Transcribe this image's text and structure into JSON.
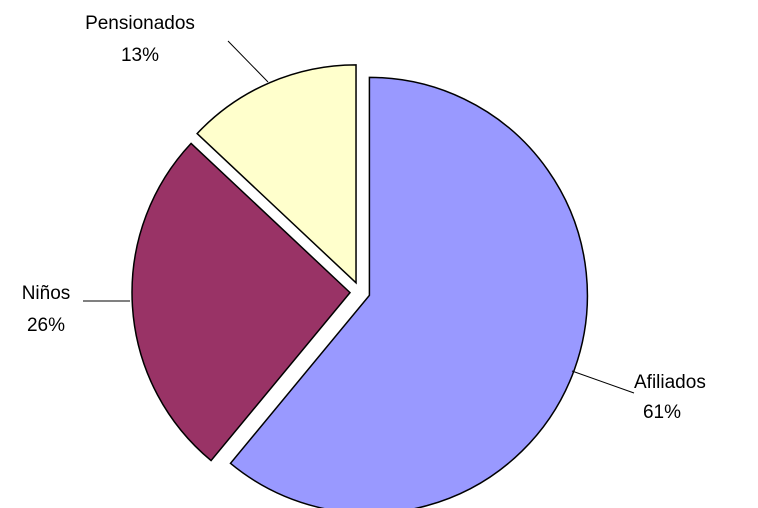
{
  "chart_data": {
    "type": "pie",
    "title": "",
    "slices": [
      {
        "label": "Afiliados",
        "value": 61,
        "value_label": "61%",
        "color": "#9999FF"
      },
      {
        "label": "Niños",
        "value": 26,
        "value_label": "26%",
        "color": "#993366"
      },
      {
        "label": "Pensionados",
        "value": 13,
        "value_label": "13%",
        "color": "#FFFFCC"
      }
    ],
    "start_angle_deg": 0,
    "direction": "clockwise",
    "exploded": true,
    "slice_outline": "#000000",
    "legend": "none"
  }
}
